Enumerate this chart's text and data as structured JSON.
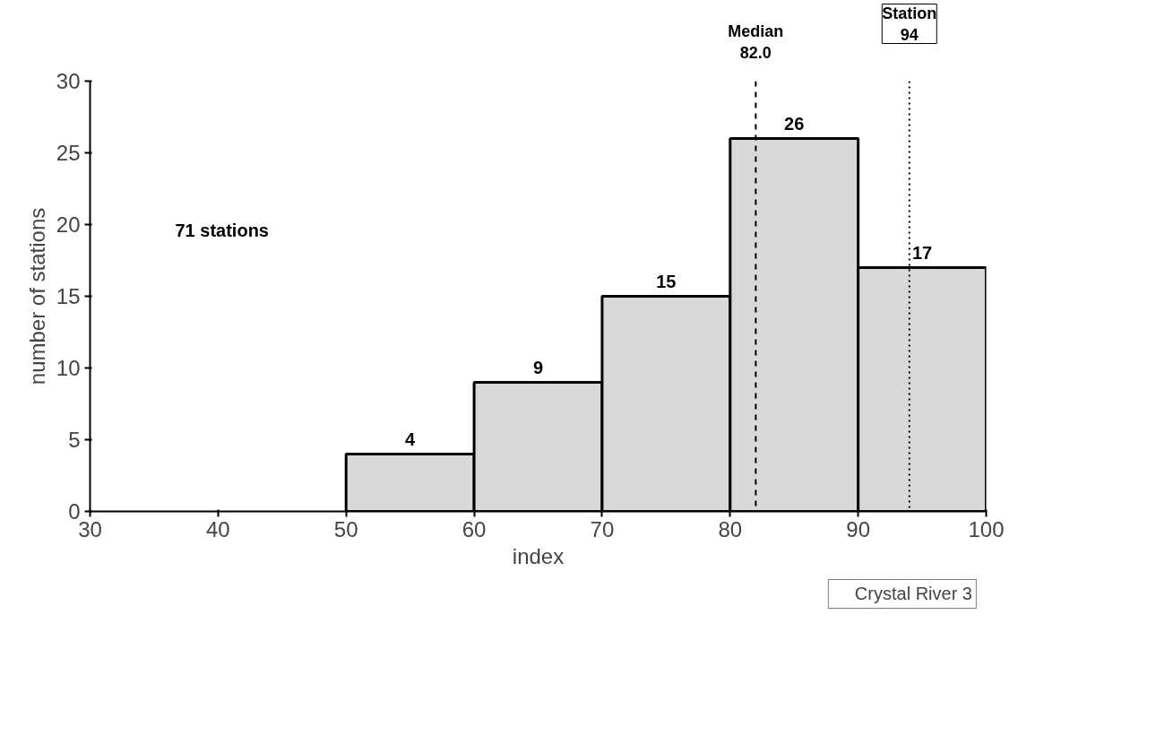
{
  "chart_data": {
    "type": "histogram",
    "xlabel": "index",
    "ylabel": "number of stations",
    "bins": [
      50,
      60,
      70,
      80,
      90,
      100
    ],
    "values": [
      4,
      9,
      15,
      26,
      17
    ],
    "color": "#d9d9d9",
    "data_labels": true,
    "xlim": [
      30,
      100
    ],
    "xticks": [
      30,
      40,
      50,
      60,
      70,
      80,
      90,
      100
    ],
    "ylim": [
      0,
      30
    ],
    "yticks": [
      0,
      5,
      10,
      15,
      20,
      25,
      30
    ],
    "grid": false,
    "ref_lines": [
      {
        "axis": "x",
        "value": 82.0,
        "label": "Median\n82.0",
        "line_style": "dashed",
        "color": "#000000"
      },
      {
        "axis": "x",
        "value": 94,
        "label": "Station\n94",
        "line_style": "dotted",
        "color": "#000000"
      }
    ],
    "annotations": [
      "71 stations",
      "Crystal River 3"
    ]
  }
}
